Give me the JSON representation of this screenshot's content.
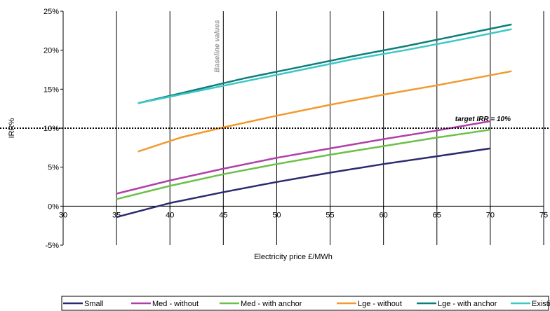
{
  "chart_data": {
    "type": "line",
    "title": "",
    "xlabel": "Electricity price £/MWh",
    "ylabel": "IRR%",
    "xlim": [
      30,
      75
    ],
    "ylim": [
      -0.05,
      0.25
    ],
    "x_ticks": [
      "30",
      "35",
      "40",
      "45",
      "50",
      "55",
      "60",
      "65",
      "70",
      "75"
    ],
    "y_ticks": [
      "-5%",
      "0%",
      "5%",
      "10%",
      "15%",
      "20%",
      "25%"
    ],
    "grid": "vertical",
    "legend_position": "bottom",
    "series": [
      {
        "name": "Small",
        "color": "#2b2a6e",
        "points": [
          [
            35,
            -0.014
          ],
          [
            40,
            0.004
          ],
          [
            45,
            0.018
          ],
          [
            50,
            0.031
          ],
          [
            55,
            0.043
          ],
          [
            60,
            0.054
          ],
          [
            65,
            0.064
          ],
          [
            70,
            0.074
          ]
        ]
      },
      {
        "name": "Med - without",
        "color": "#b040a8",
        "points": [
          [
            35,
            0.016
          ],
          [
            40,
            0.033
          ],
          [
            45,
            0.048
          ],
          [
            50,
            0.062
          ],
          [
            55,
            0.074
          ],
          [
            60,
            0.086
          ],
          [
            65,
            0.097
          ],
          [
            70,
            0.109
          ]
        ]
      },
      {
        "name": "Med - with anchor",
        "color": "#6cc04a",
        "points": [
          [
            35,
            0.009
          ],
          [
            40,
            0.026
          ],
          [
            45,
            0.041
          ],
          [
            50,
            0.054
          ],
          [
            55,
            0.066
          ],
          [
            60,
            0.077
          ],
          [
            65,
            0.088
          ],
          [
            70,
            0.098
          ]
        ]
      },
      {
        "name": "Lge - without",
        "color": "#f29a2e",
        "points": [
          [
            37,
            0.07
          ],
          [
            41,
            0.088
          ],
          [
            45,
            0.101
          ],
          [
            50,
            0.116
          ],
          [
            55,
            0.13
          ],
          [
            60,
            0.143
          ],
          [
            65,
            0.155
          ],
          [
            72,
            0.173
          ]
        ]
      },
      {
        "name": "Lge - with anchor",
        "color": "#0f7e7a",
        "points": [
          [
            37,
            0.132
          ],
          [
            42,
            0.148
          ],
          [
            47,
            0.164
          ],
          [
            52,
            0.178
          ],
          [
            57,
            0.192
          ],
          [
            62,
            0.205
          ],
          [
            67,
            0.219
          ],
          [
            72,
            0.233
          ]
        ]
      },
      {
        "name": "Existing stock",
        "color": "#3ec7c7",
        "points": [
          [
            37,
            0.132
          ],
          [
            42,
            0.146
          ],
          [
            47,
            0.16
          ],
          [
            52,
            0.174
          ],
          [
            57,
            0.188
          ],
          [
            62,
            0.2
          ],
          [
            67,
            0.213
          ],
          [
            72,
            0.227
          ]
        ]
      }
    ],
    "reference_line": {
      "y": 0.1,
      "label": "target IRR = 10%",
      "style": "dotted"
    },
    "annotations": [
      {
        "text": "Baseline values",
        "x": 45,
        "color": "#9a9a9a",
        "orientation": "vertical"
      }
    ]
  }
}
